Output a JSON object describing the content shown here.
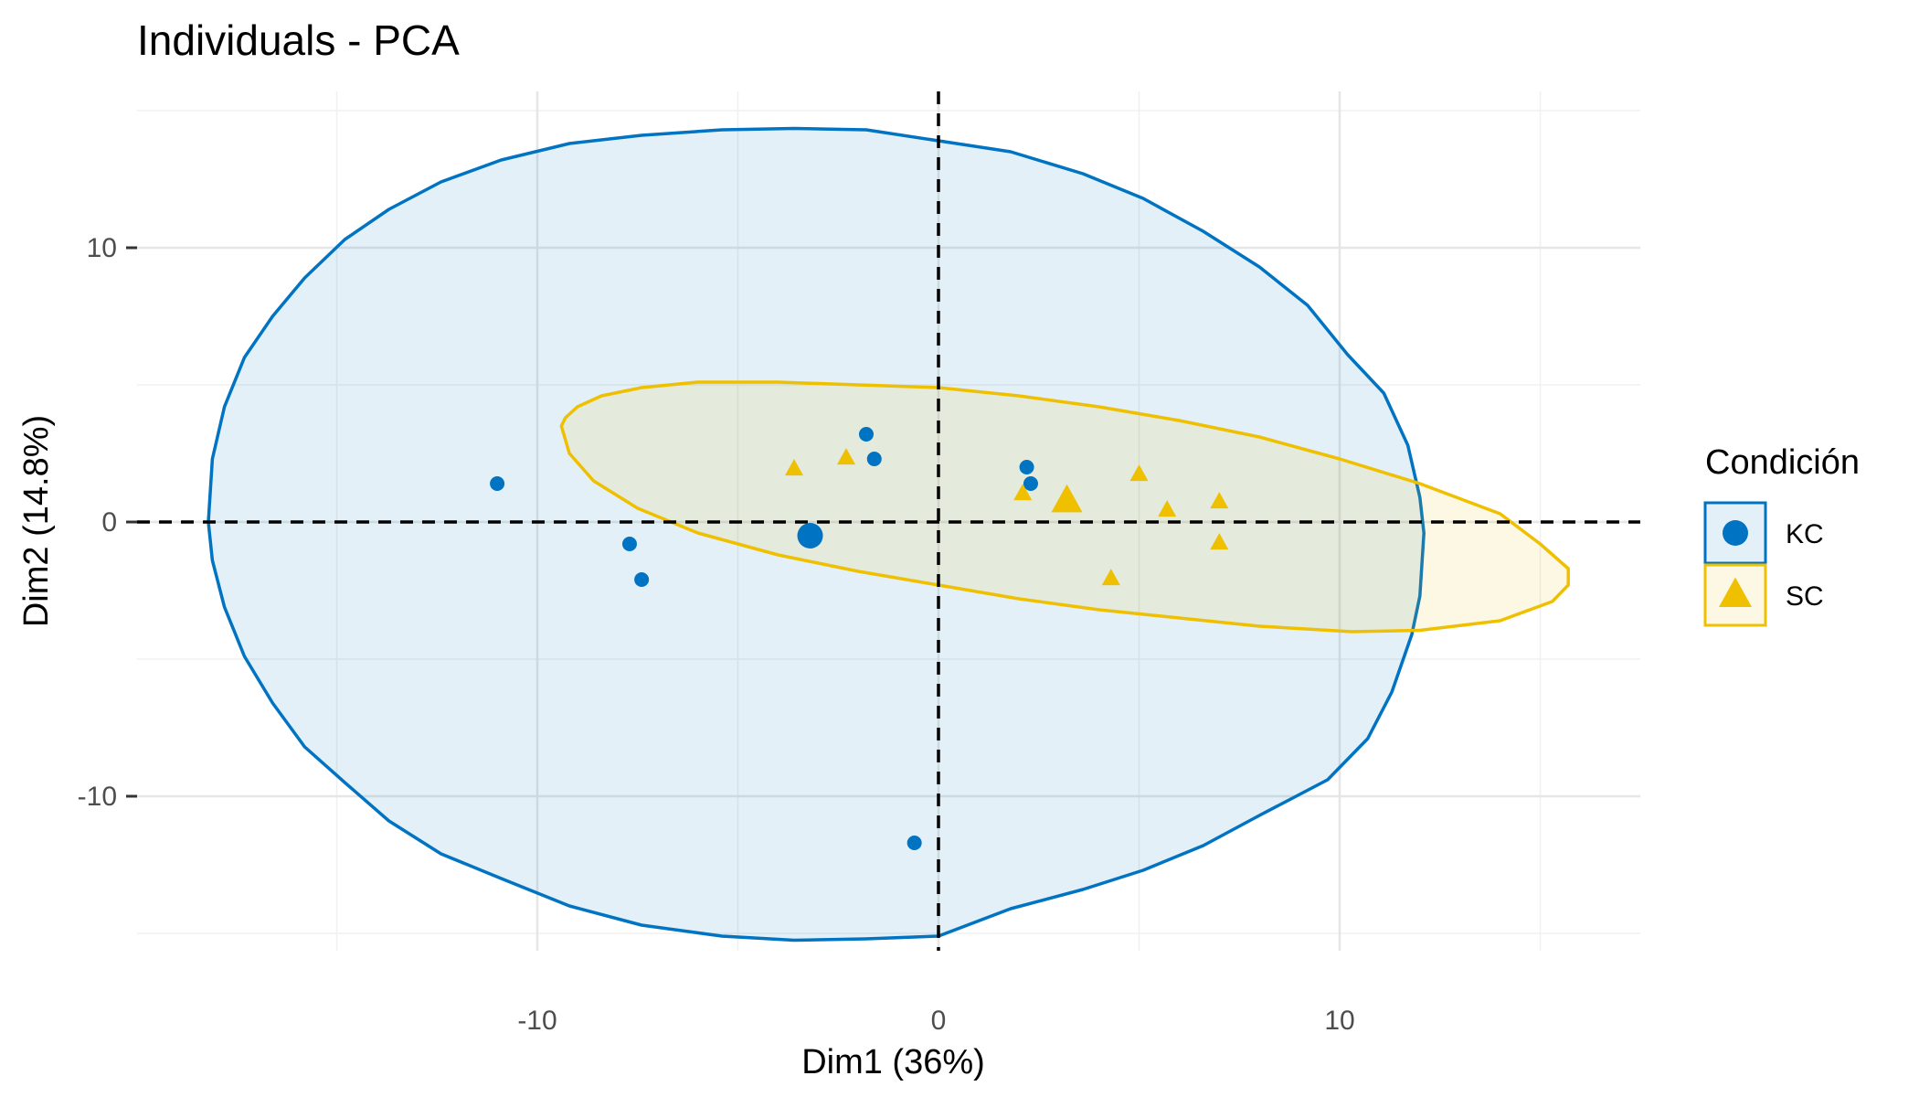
{
  "chart_data": {
    "type": "scatter",
    "title": "Individuals - PCA",
    "xlabel": "Dim1 (36%)",
    "ylabel": "Dim2 (14.8%)",
    "xlim": [
      -20,
      17.5
    ],
    "ylim": [
      -16.5,
      15.5
    ],
    "x_ticks": [
      -10,
      0,
      10
    ],
    "x_tick_labels": [
      "-10",
      "0",
      "10"
    ],
    "y_ticks": [
      -10,
      0,
      10
    ],
    "y_tick_labels": [
      "-10",
      "0",
      "10"
    ],
    "minor_x_ticks": [
      -15,
      -5,
      5,
      15
    ],
    "minor_y_ticks": [
      -5,
      5,
      -15,
      15
    ],
    "grid": true,
    "reference_lines": {
      "x": 0,
      "y": 0,
      "style": "dashed"
    },
    "legend": {
      "title": "Condición",
      "position": "right"
    },
    "series": [
      {
        "name": "KC",
        "color": "#0073C2",
        "marker": "circle",
        "points": [
          {
            "x": -11.0,
            "y": 1.4
          },
          {
            "x": -7.7,
            "y": -0.8
          },
          {
            "x": -7.4,
            "y": -2.1
          },
          {
            "x": -1.8,
            "y": 3.2
          },
          {
            "x": -1.6,
            "y": 2.3
          },
          {
            "x": 2.2,
            "y": 2.0
          },
          {
            "x": 2.3,
            "y": 1.4
          },
          {
            "x": -0.6,
            "y": -11.7
          }
        ],
        "centroid": {
          "x": -3.2,
          "y": -0.5
        },
        "ellipse_outline": [
          [
            -18.2,
            0.0
          ],
          [
            -18.1,
            2.3
          ],
          [
            -17.8,
            4.2
          ],
          [
            -17.3,
            6.0
          ],
          [
            -16.6,
            7.5
          ],
          [
            -15.8,
            8.9
          ],
          [
            -14.8,
            10.3
          ],
          [
            -13.7,
            11.4
          ],
          [
            -12.4,
            12.4
          ],
          [
            -10.9,
            13.2
          ],
          [
            -9.2,
            13.8
          ],
          [
            -7.4,
            14.1
          ],
          [
            -5.4,
            14.3
          ],
          [
            -3.6,
            14.35
          ],
          [
            -1.8,
            14.3
          ],
          [
            0.0,
            13.9
          ],
          [
            1.8,
            13.5
          ],
          [
            3.6,
            12.7
          ],
          [
            5.1,
            11.8
          ],
          [
            6.6,
            10.6
          ],
          [
            8.0,
            9.3
          ],
          [
            9.2,
            7.9
          ],
          [
            10.2,
            6.1
          ],
          [
            11.1,
            4.7
          ],
          [
            11.7,
            2.8
          ],
          [
            12.0,
            0.9
          ],
          [
            12.1,
            -0.4
          ],
          [
            12.0,
            -2.7
          ],
          [
            11.8,
            -4.1
          ],
          [
            11.3,
            -6.2
          ],
          [
            10.7,
            -7.9
          ],
          [
            9.7,
            -9.4
          ],
          [
            8.0,
            -10.7
          ],
          [
            6.6,
            -11.8
          ],
          [
            5.1,
            -12.7
          ],
          [
            3.6,
            -13.4
          ],
          [
            1.8,
            -14.1
          ],
          [
            0.0,
            -15.1
          ],
          [
            -1.8,
            -15.2
          ],
          [
            -3.6,
            -15.25
          ],
          [
            -5.4,
            -15.1
          ],
          [
            -7.4,
            -14.7
          ],
          [
            -9.2,
            -14.0
          ],
          [
            -10.9,
            -13.0
          ],
          [
            -12.4,
            -12.1
          ],
          [
            -13.7,
            -10.9
          ],
          [
            -14.8,
            -9.5
          ],
          [
            -15.8,
            -8.2
          ],
          [
            -16.6,
            -6.6
          ],
          [
            -17.3,
            -4.9
          ],
          [
            -17.8,
            -3.1
          ],
          [
            -18.1,
            -1.4
          ]
        ]
      },
      {
        "name": "SC",
        "color": "#EFC000",
        "marker": "triangle",
        "points": [
          {
            "x": -3.6,
            "y": 1.9
          },
          {
            "x": -2.3,
            "y": 2.3
          },
          {
            "x": 2.1,
            "y": 1.0
          },
          {
            "x": 5.0,
            "y": 1.7
          },
          {
            "x": 5.7,
            "y": 0.4
          },
          {
            "x": 7.0,
            "y": 0.7
          },
          {
            "x": 7.0,
            "y": -0.8
          },
          {
            "x": 4.3,
            "y": -2.1
          }
        ],
        "centroid": {
          "x": 3.2,
          "y": 0.7
        },
        "ellipse_outline": [
          [
            -9.4,
            3.5
          ],
          [
            -9.3,
            3.8
          ],
          [
            -9.0,
            4.2
          ],
          [
            -8.4,
            4.6
          ],
          [
            -7.4,
            4.9
          ],
          [
            -6.0,
            5.1
          ],
          [
            -4.0,
            5.1
          ],
          [
            -2.0,
            5.0
          ],
          [
            0.0,
            4.9
          ],
          [
            2.0,
            4.6
          ],
          [
            4.0,
            4.2
          ],
          [
            6.0,
            3.7
          ],
          [
            8.0,
            3.1
          ],
          [
            10.0,
            2.3
          ],
          [
            12.0,
            1.4
          ],
          [
            14.0,
            0.3
          ],
          [
            15.0,
            -0.8
          ],
          [
            15.7,
            -1.7
          ],
          [
            15.7,
            -2.3
          ],
          [
            15.3,
            -2.9
          ],
          [
            14.0,
            -3.6
          ],
          [
            12.0,
            -3.95
          ],
          [
            10.3,
            -4.0
          ],
          [
            8.0,
            -3.8
          ],
          [
            6.0,
            -3.5
          ],
          [
            4.0,
            -3.2
          ],
          [
            2.0,
            -2.8
          ],
          [
            0.0,
            -2.3
          ],
          [
            -2.0,
            -1.8
          ],
          [
            -4.0,
            -1.2
          ],
          [
            -6.0,
            -0.4
          ],
          [
            -7.5,
            0.5
          ],
          [
            -8.6,
            1.5
          ],
          [
            -9.2,
            2.5
          ]
        ]
      }
    ]
  }
}
